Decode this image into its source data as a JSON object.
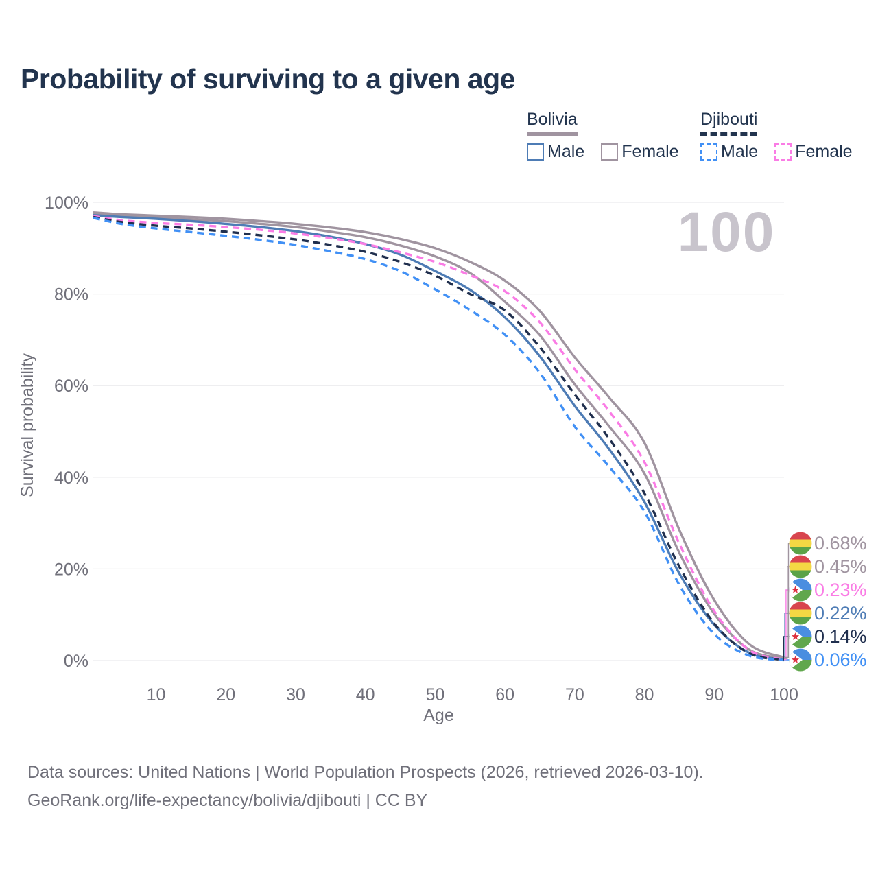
{
  "title": "Probability of surviving to a given age",
  "legend": {
    "bolivia": {
      "label": "Bolivia",
      "underline_color": "#a094a0",
      "underline_style": "solid",
      "male_label": "Male",
      "male_color": "#4e7cb5",
      "female_label": "Female",
      "female_color": "#a094a0"
    },
    "djibouti": {
      "label": "Djibouti",
      "underline_color": "#22344e",
      "underline_style": "dashed",
      "male_label": "Male",
      "male_color": "#4190f5",
      "female_label": "Female",
      "female_color": "#fa7ce5"
    }
  },
  "footer": {
    "line1": "Data sources: United Nations | World Population Prospects (2026, retrieved 2026-03-10).",
    "line2": "GeoRank.org/life-expectancy/bolivia/djibouti | CC BY"
  },
  "chart_data": {
    "type": "line",
    "title": "Probability of surviving to a given age",
    "xlabel": "Age",
    "ylabel": "Survival probability",
    "xlim": [
      1,
      100
    ],
    "ylim": [
      0,
      100
    ],
    "grid": true,
    "legend_position": "top-right",
    "watermark": "100",
    "watermark_color": "#c8c4cc",
    "grid_color": "#ebebee",
    "axis_text_color": "#70707a",
    "x_ticks": [
      10,
      20,
      30,
      40,
      50,
      60,
      70,
      80,
      90,
      100
    ],
    "y_ticks": [
      {
        "value": 0,
        "label": "0%"
      },
      {
        "value": 20,
        "label": "20%"
      },
      {
        "value": 40,
        "label": "40%"
      },
      {
        "value": 60,
        "label": "60%"
      },
      {
        "value": 80,
        "label": "80%"
      },
      {
        "value": 100,
        "label": "100%"
      }
    ],
    "ages": [
      1,
      5,
      10,
      15,
      20,
      25,
      30,
      35,
      40,
      45,
      50,
      55,
      60,
      65,
      70,
      75,
      80,
      85,
      90,
      95,
      100
    ],
    "series": [
      {
        "name": "Bolivia Female",
        "slug": "bolivia-female",
        "country": "Bolivia",
        "sex": "Female",
        "flag": "bolivia",
        "color": "#a094a0",
        "line_style": "solid",
        "end_label": "0.68%",
        "end_label_color": "#a094a0",
        "values": [
          97.8,
          97.4,
          97.1,
          96.8,
          96.4,
          95.9,
          95.3,
          94.5,
          93.5,
          92.0,
          90.0,
          87.0,
          82.9,
          76.3,
          66.2,
          57.3,
          47.5,
          28.5,
          13.2,
          3.6,
          0.68
        ]
      },
      {
        "name": "Bolivia Both sexes",
        "slug": "bolivia-both",
        "country": "Bolivia",
        "sex": "Both",
        "flag": "bolivia",
        "color": "#a094a0",
        "line_style": "solid",
        "end_label": "0.45%",
        "end_label_color": "#a094a0",
        "values": [
          97.5,
          97.1,
          96.7,
          96.3,
          95.9,
          95.3,
          94.6,
          93.6,
          92.4,
          90.6,
          88.2,
          84.6,
          78.3,
          71.0,
          60.3,
          51.0,
          40.8,
          23.5,
          10.2,
          2.4,
          0.45
        ]
      },
      {
        "name": "Djibouti Female",
        "slug": "djibouti-female",
        "country": "Djibouti",
        "sex": "Female",
        "flag": "djibouti",
        "color": "#fa7ce5",
        "line_style": "dashed",
        "end_label": "0.23%",
        "end_label_color": "#fa7ce5",
        "values": [
          97.0,
          96.1,
          95.5,
          95.1,
          94.6,
          94.0,
          93.2,
          92.2,
          90.9,
          89.1,
          87.0,
          84.1,
          80.6,
          73.8,
          63.6,
          54.3,
          43.3,
          25.5,
          10.8,
          2.3,
          0.23
        ]
      },
      {
        "name": "Bolivia Male",
        "slug": "bolivia-male",
        "country": "Bolivia",
        "sex": "Male",
        "flag": "bolivia",
        "color": "#4e7cb5",
        "line_style": "solid",
        "end_label": "0.22%",
        "end_label_color": "#4e7cb5",
        "values": [
          97.2,
          96.8,
          96.4,
          95.9,
          95.3,
          94.6,
          93.7,
          92.5,
          90.9,
          88.6,
          85.0,
          80.9,
          74.9,
          66.4,
          55.6,
          46.0,
          34.6,
          19.0,
          7.8,
          1.7,
          0.22
        ]
      },
      {
        "name": "Djibouti Both sexes",
        "slug": "djibouti-both",
        "country": "Djibouti",
        "sex": "Both",
        "flag": "djibouti",
        "color": "#202f4e",
        "line_style": "dashed",
        "end_label": "0.14%",
        "end_label_color": "#202f4e",
        "values": [
          96.8,
          95.7,
          94.9,
          94.3,
          93.6,
          92.8,
          91.9,
          90.7,
          89.2,
          87.0,
          84.0,
          80.0,
          76.4,
          68.4,
          58.1,
          48.3,
          36.5,
          20.5,
          8.1,
          1.6,
          0.14
        ]
      },
      {
        "name": "Djibouti Male",
        "slug": "djibouti-male",
        "country": "Djibouti",
        "sex": "Male",
        "flag": "djibouti",
        "color": "#4190f5",
        "line_style": "dashed",
        "end_label": "0.06%",
        "end_label_color": "#4190f5",
        "values": [
          96.6,
          95.3,
          94.3,
          93.5,
          92.7,
          91.8,
          90.7,
          89.3,
          87.6,
          85.0,
          81.0,
          76.5,
          71.1,
          62.8,
          51.1,
          42.2,
          32.5,
          16.5,
          5.8,
          1.1,
          0.06
        ]
      }
    ],
    "flag_colors": {
      "bolivia": {
        "red": "#d8454e",
        "yellow": "#f4d844",
        "green": "#5ba348"
      },
      "djibouti": {
        "blue": "#4a8ee0",
        "green": "#61a74d",
        "white": "#ffffff",
        "star": "#dc2f3e"
      }
    }
  }
}
